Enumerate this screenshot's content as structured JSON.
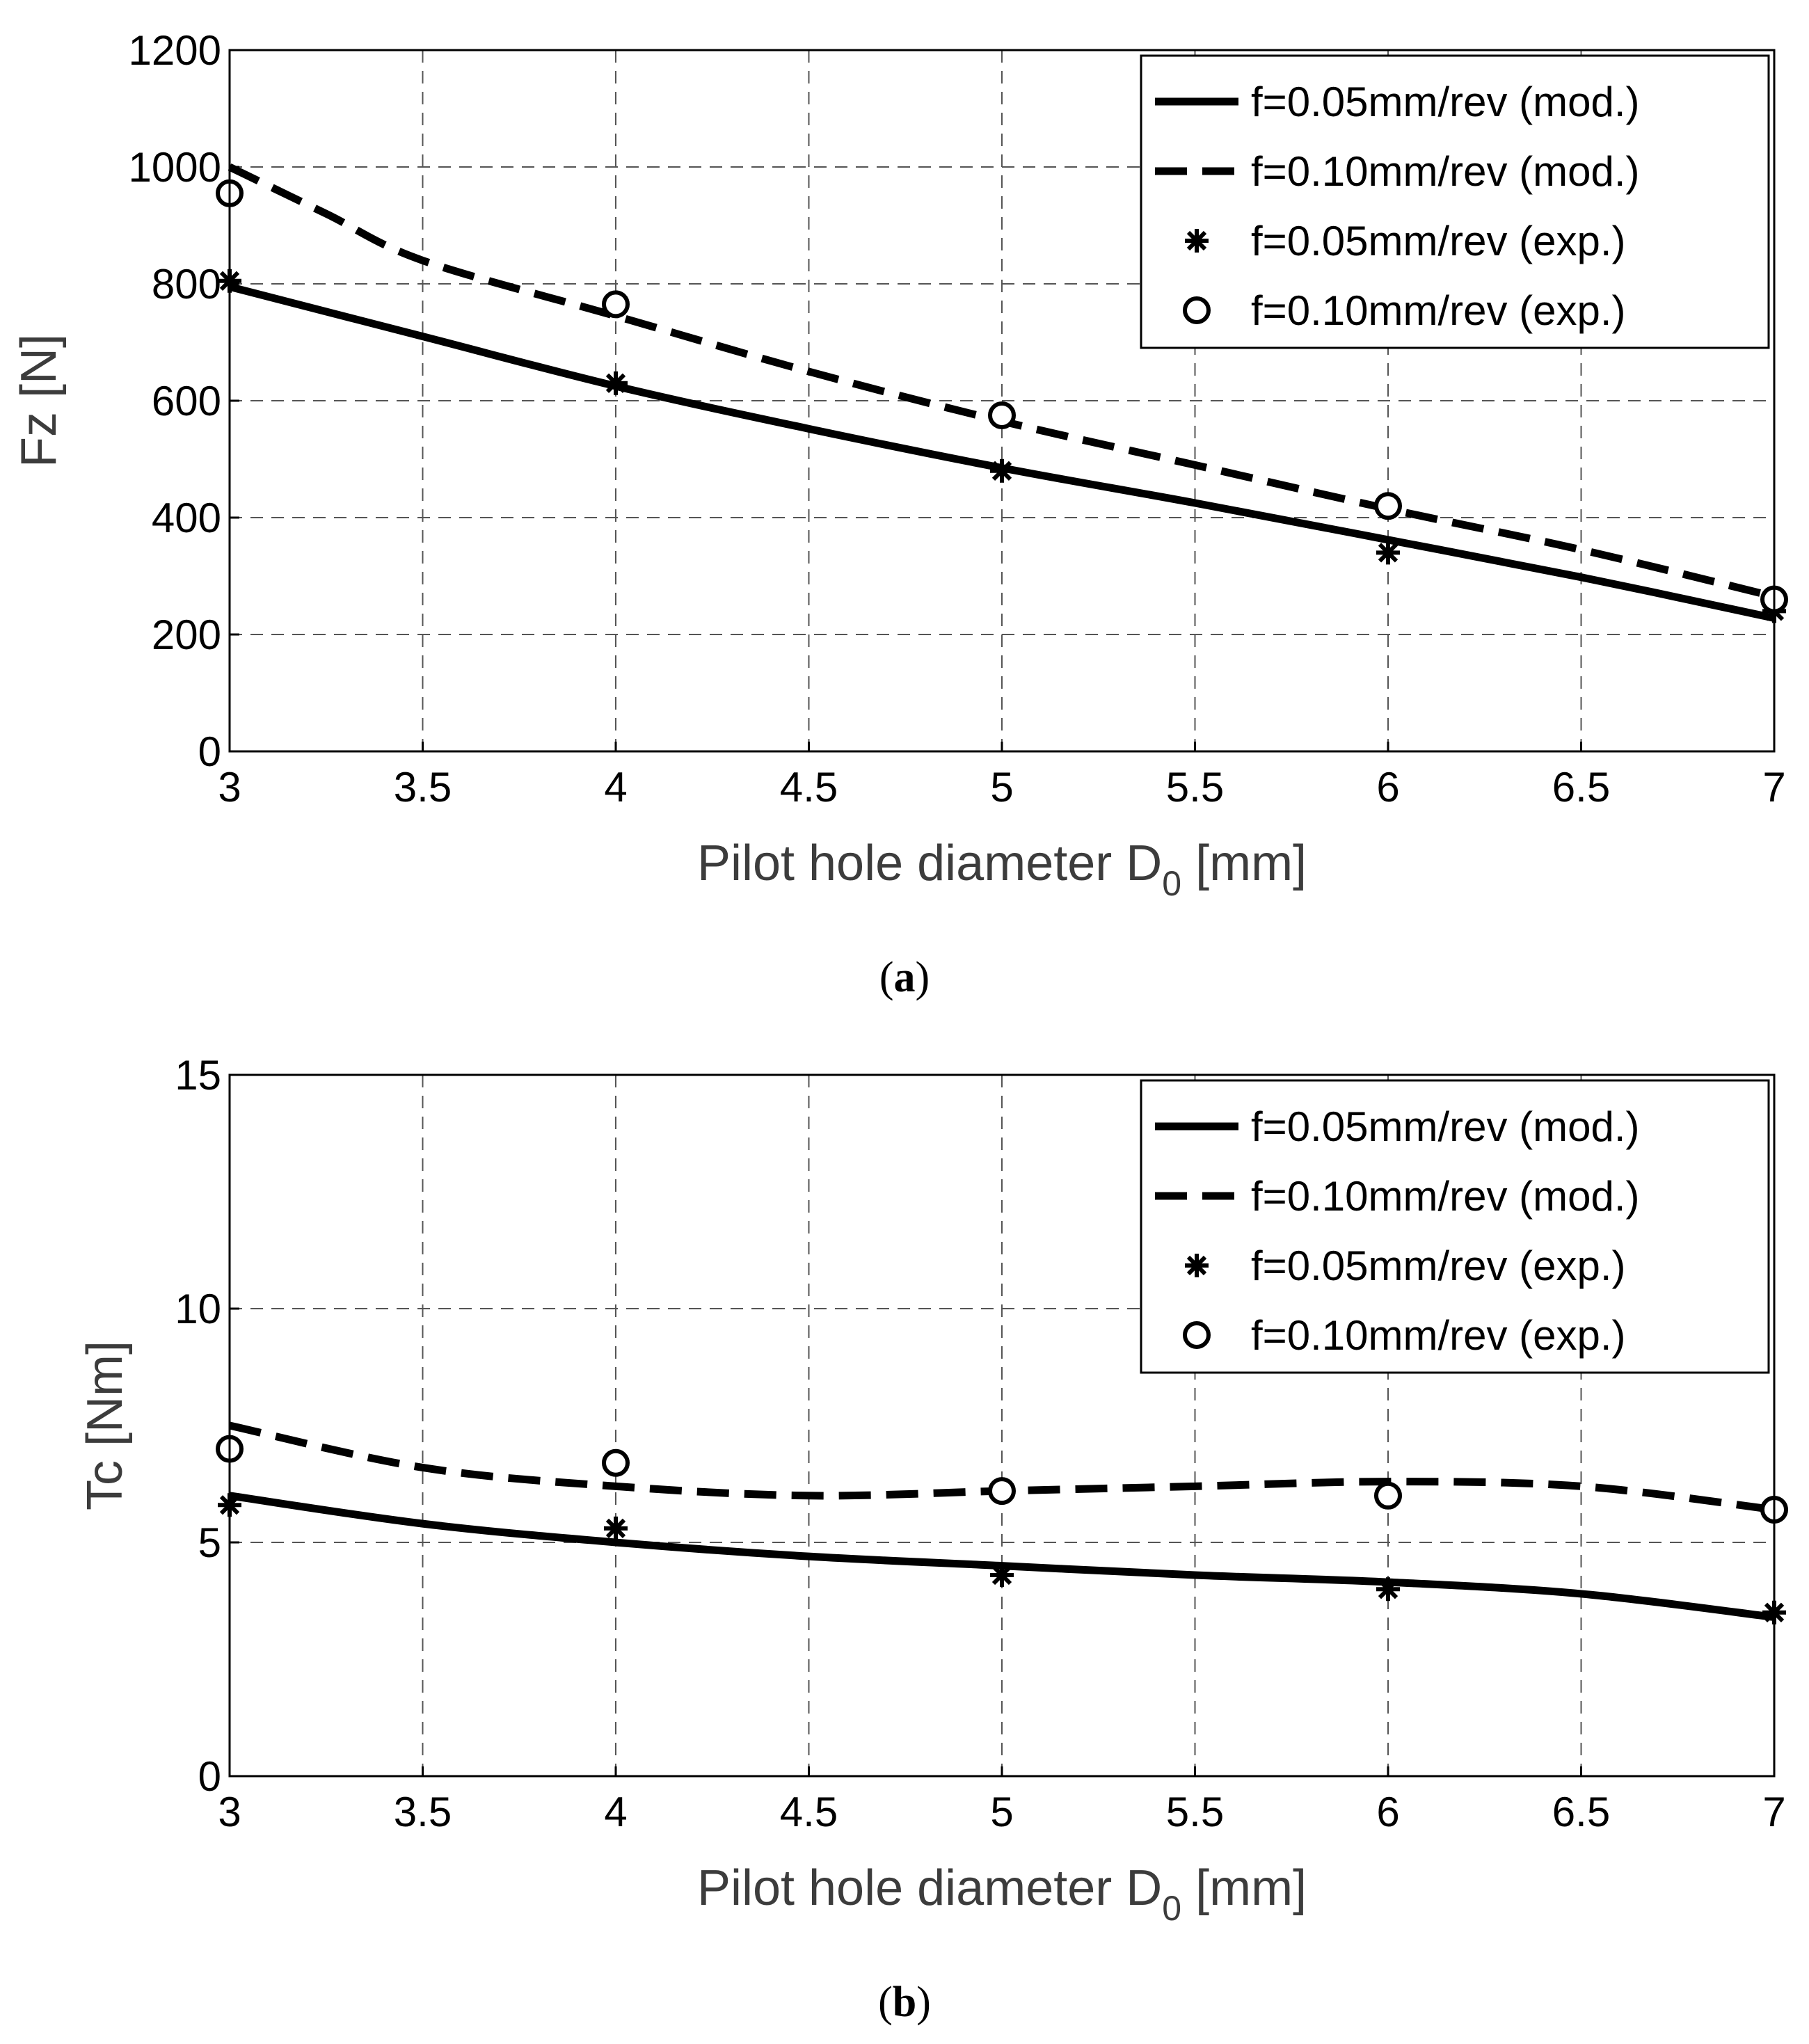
{
  "chart_data": [
    {
      "type": "line",
      "panel_label": "a",
      "xlabel": "Pilot hole diameter D",
      "xlabel_sub": "0",
      "xlabel_unit": "[mm]",
      "ylabel": "Fz [N]",
      "xlim": [
        3,
        7
      ],
      "ylim": [
        0,
        1200
      ],
      "xticks": [
        "3",
        "3.5",
        "4",
        "4.5",
        "5",
        "5.5",
        "6",
        "6.5",
        "7"
      ],
      "yticks": [
        "0",
        "200",
        "400",
        "600",
        "800",
        "1000",
        "1200"
      ],
      "grid": true,
      "legend_position": "top-right",
      "series": [
        {
          "name": "f=0.05mm/rev (mod.)",
          "style": "solid",
          "x": [
            3,
            3.5,
            4,
            4.5,
            5,
            5.5,
            6,
            6.5,
            7
          ],
          "y": [
            795,
            710,
            625,
            552,
            485,
            425,
            362,
            298,
            228
          ]
        },
        {
          "name": "f=0.10mm/rev (mod.)",
          "style": "dashed",
          "x": [
            3,
            3.25,
            3.5,
            4,
            4.5,
            5,
            5.5,
            6,
            6.5,
            7
          ],
          "y": [
            1000,
            920,
            840,
            745,
            650,
            565,
            490,
            415,
            345,
            265
          ]
        },
        {
          "name": "f=0.05mm/rev (exp.)",
          "style": "asterisk",
          "x": [
            3,
            4,
            5,
            6,
            7
          ],
          "y": [
            805,
            630,
            480,
            340,
            240
          ]
        },
        {
          "name": "f=0.10mm/rev (exp.)",
          "style": "circle",
          "x": [
            3,
            4,
            5,
            6,
            7
          ],
          "y": [
            955,
            765,
            575,
            420,
            260
          ]
        }
      ]
    },
    {
      "type": "line",
      "panel_label": "b",
      "xlabel": "Pilot hole diameter D",
      "xlabel_sub": "0",
      "xlabel_unit": "[mm]",
      "ylabel": "Tc [Nm]",
      "xlim": [
        3,
        7
      ],
      "ylim": [
        0,
        15
      ],
      "xticks": [
        "3",
        "3.5",
        "4",
        "4.5",
        "5",
        "5.5",
        "6",
        "6.5",
        "7"
      ],
      "yticks": [
        "0",
        "5",
        "10",
        "15"
      ],
      "grid": true,
      "legend_position": "top-right",
      "series": [
        {
          "name": "f=0.05mm/rev (mod.)",
          "style": "solid",
          "x": [
            3,
            3.5,
            4,
            4.5,
            5,
            5.5,
            6,
            6.5,
            7
          ],
          "y": [
            6.0,
            5.4,
            5.0,
            4.7,
            4.5,
            4.3,
            4.15,
            3.9,
            3.4
          ]
        },
        {
          "name": "f=0.10mm/rev (mod.)",
          "style": "dashed",
          "x": [
            3,
            3.5,
            4,
            4.5,
            5,
            5.5,
            6,
            6.5,
            7
          ],
          "y": [
            7.5,
            6.6,
            6.2,
            6.0,
            6.1,
            6.2,
            6.3,
            6.2,
            5.7
          ]
        },
        {
          "name": "f=0.05mm/rev (exp.)",
          "style": "asterisk",
          "x": [
            3,
            4,
            5,
            6,
            7
          ],
          "y": [
            5.8,
            5.3,
            4.3,
            4.0,
            3.5
          ]
        },
        {
          "name": "f=0.10mm/rev (exp.)",
          "style": "circle",
          "x": [
            3,
            4,
            5,
            6,
            7
          ],
          "y": [
            7.0,
            6.7,
            6.1,
            6.0,
            5.7
          ]
        }
      ]
    }
  ]
}
